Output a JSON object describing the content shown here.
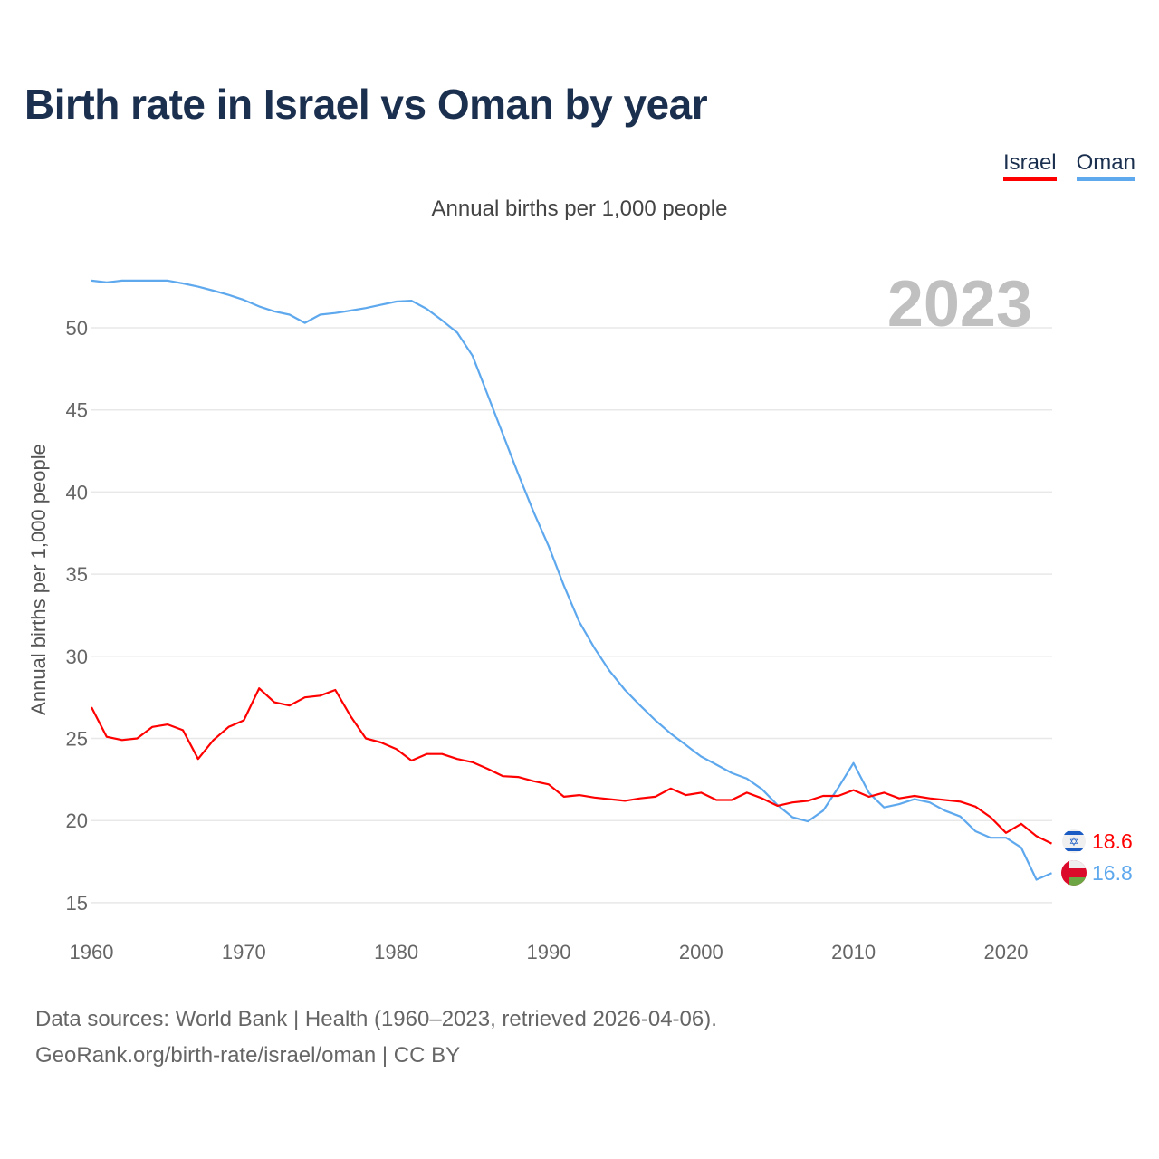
{
  "header": {
    "title": "Birth rate in Israel vs Oman by year"
  },
  "legend": [
    {
      "label": "Israel",
      "color": "#ff0000"
    },
    {
      "label": "Oman",
      "color": "#5ea8ee"
    }
  ],
  "footer": {
    "source": "Data sources: World Bank | Health (1960–2023, retrieved 2026-04-06).",
    "credit": "GeoRank.org/birth-rate/israel/oman | CC BY"
  },
  "chart_data": {
    "type": "line",
    "title": "Birth rate in Israel vs Oman by year",
    "subtitle": "Annual births per 1,000 people",
    "ylabel": "Annual births per 1,000 people",
    "xlabel": "",
    "year_label": "2023",
    "xlim": [
      1960,
      2023
    ],
    "ylim": [
      13.5,
      53
    ],
    "yticks": [
      15,
      20,
      25,
      30,
      35,
      40,
      45,
      50
    ],
    "xticks": [
      1960,
      1970,
      1980,
      1990,
      2000,
      2010,
      2020
    ],
    "grid": true,
    "x_start": 1960,
    "series": [
      {
        "name": "Israel",
        "color": "#ff0000",
        "end_label": "18.6",
        "flag": "israel-flag",
        "values": [
          26.9,
          25.1,
          24.9,
          25.0,
          25.7,
          25.85,
          25.5,
          23.75,
          24.9,
          25.7,
          26.1,
          28.05,
          27.2,
          27.0,
          27.5,
          27.6,
          27.95,
          26.35,
          25.0,
          24.75,
          24.35,
          23.65,
          24.05,
          24.05,
          23.75,
          23.55,
          23.15,
          22.7,
          22.65,
          22.4,
          22.2,
          21.45,
          21.55,
          21.4,
          21.3,
          21.2,
          21.35,
          21.45,
          21.95,
          21.55,
          21.7,
          21.25,
          21.25,
          21.7,
          21.35,
          20.9,
          21.1,
          21.2,
          21.5,
          21.5,
          21.85,
          21.45,
          21.7,
          21.35,
          21.5,
          21.35,
          21.25,
          21.15,
          20.85,
          20.2,
          19.25,
          19.8,
          19.05,
          18.6
        ]
      },
      {
        "name": "Oman",
        "color": "#5ea8ee",
        "end_label": "16.8",
        "flag": "oman-flag",
        "values": [
          52.87,
          52.76,
          52.87,
          52.87,
          52.87,
          52.87,
          52.7,
          52.5,
          52.26,
          52.0,
          51.7,
          51.3,
          51.0,
          50.8,
          50.3,
          50.8,
          50.9,
          51.05,
          51.2,
          51.4,
          51.6,
          51.65,
          51.15,
          50.45,
          49.7,
          48.3,
          45.9,
          43.5,
          41.1,
          38.8,
          36.7,
          34.3,
          32.1,
          30.5,
          29.1,
          27.95,
          27.0,
          26.1,
          25.3,
          24.6,
          23.9,
          23.4,
          22.9,
          22.55,
          21.9,
          20.95,
          20.2,
          19.95,
          20.6,
          22.0,
          23.5,
          21.7,
          20.8,
          21.0,
          21.3,
          21.1,
          20.6,
          20.25,
          19.35,
          18.95,
          18.95,
          18.35,
          16.4,
          16.8
        ]
      }
    ]
  }
}
